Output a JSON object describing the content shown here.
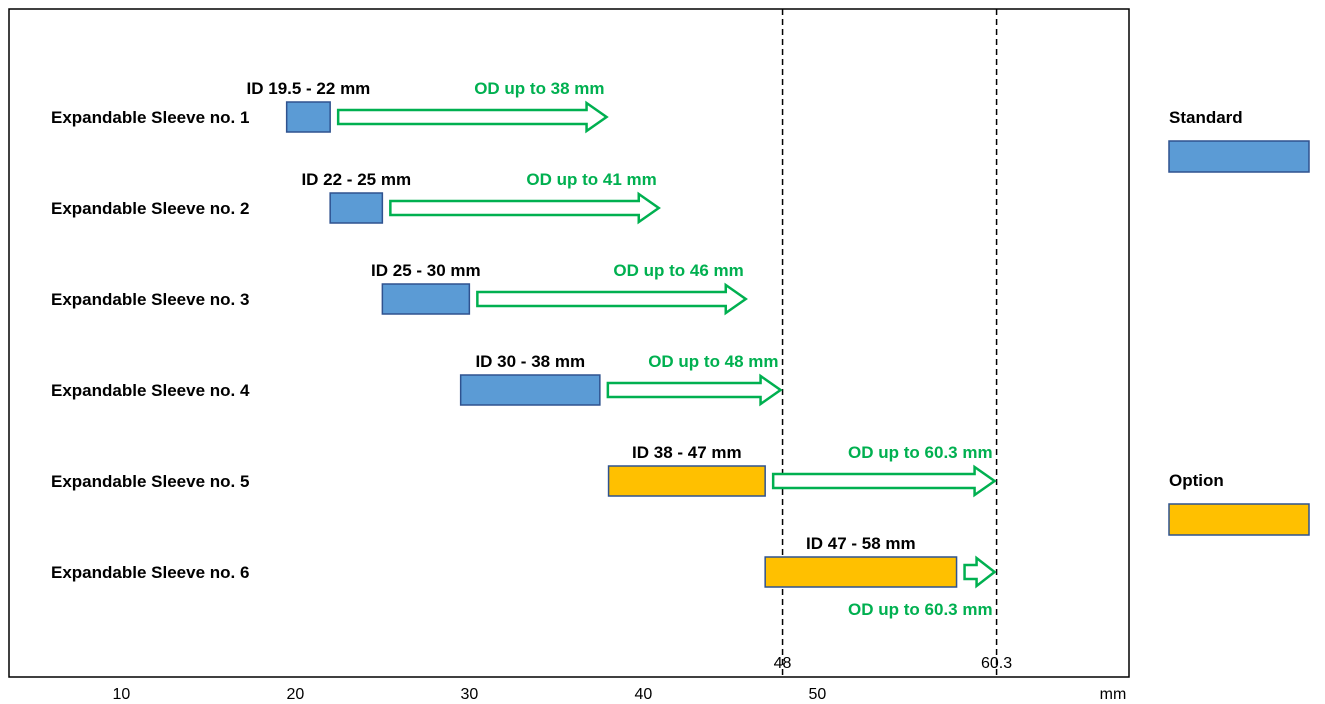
{
  "chart_data": {
    "type": "bar",
    "xlabel": "mm",
    "x_ticks": [
      10,
      20,
      30,
      40,
      50
    ],
    "xlim": [
      3.6,
      64.4
    ],
    "reference_lines": [
      {
        "value": 48,
        "label": "48"
      },
      {
        "value": 60.3,
        "label": "60.3"
      }
    ],
    "legend": {
      "placement": "right",
      "items": [
        {
          "name": "Standard",
          "color": "#5b9bd5"
        },
        {
          "name": "Option",
          "color": "#ffc000"
        }
      ]
    },
    "arrow_color": "#00b050",
    "rows": [
      {
        "label": "Expandable Sleeve no. 1",
        "category": "Standard",
        "id_min": 19.5,
        "id_max": 22,
        "od_max": 38,
        "id_text": "ID 19.5 - 22 mm",
        "od_text": "OD up to 38 mm",
        "od_text_position": "above"
      },
      {
        "label": "Expandable Sleeve no. 2",
        "category": "Standard",
        "id_min": 22,
        "id_max": 25,
        "od_max": 41,
        "id_text": "ID 22 - 25 mm",
        "od_text": "OD up to 41 mm",
        "od_text_position": "above"
      },
      {
        "label": "Expandable Sleeve no. 3",
        "category": "Standard",
        "id_min": 25,
        "id_max": 30,
        "od_max": 46,
        "id_text": "ID 25 - 30 mm",
        "od_text": "OD up to 46 mm",
        "od_text_position": "above"
      },
      {
        "label": "Expandable Sleeve no. 4",
        "category": "Standard",
        "id_min": 29.5,
        "id_max": 37.5,
        "od_max": 48,
        "id_text": "ID 30 - 38 mm",
        "od_text": "OD up to 48 mm",
        "od_text_position": "above"
      },
      {
        "label": "Expandable Sleeve no. 5",
        "category": "Option",
        "id_min": 38,
        "id_max": 47,
        "od_max": 60.3,
        "id_text": "ID 38 - 47 mm",
        "od_text": "OD up to 60.3 mm",
        "od_text_position": "above"
      },
      {
        "label": "Expandable Sleeve no. 6",
        "category": "Option",
        "id_min": 47,
        "id_max": 58,
        "od_max": 60.3,
        "id_text": "ID 47 - 58 mm",
        "od_text": "OD up to 60.3 mm",
        "od_text_position": "below"
      }
    ]
  }
}
